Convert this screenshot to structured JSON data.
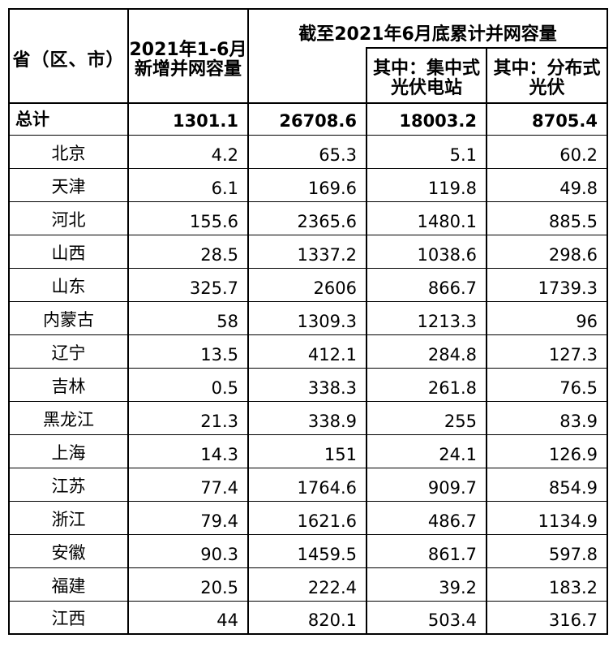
{
  "table": {
    "header": {
      "province": "省（区、市）",
      "new_capacity_line1": "2021年1-6月",
      "new_capacity_line2": "新增并网容量",
      "cumulative_title": "截至2021年6月底累计并网容量",
      "centralized_line1": "其中：集中式",
      "centralized_line2": "光伏电站",
      "distributed_line1": "其中：分布式",
      "distributed_line2": "光伏"
    },
    "total_row": {
      "label": "总计",
      "values": [
        "1301.1",
        "26708.6",
        "18003.2",
        "8705.4"
      ]
    },
    "rows": [
      {
        "province": "北京",
        "values": [
          "4.2",
          "65.3",
          "5.1",
          "60.2"
        ]
      },
      {
        "province": "天津",
        "values": [
          "6.1",
          "169.6",
          "119.8",
          "49.8"
        ]
      },
      {
        "province": "河北",
        "values": [
          "155.6",
          "2365.6",
          "1480.1",
          "885.5"
        ]
      },
      {
        "province": "山西",
        "values": [
          "28.5",
          "1337.2",
          "1038.6",
          "298.6"
        ]
      },
      {
        "province": "山东",
        "values": [
          "325.7",
          "2606",
          "866.7",
          "1739.3"
        ]
      },
      {
        "province": "内蒙古",
        "values": [
          "58",
          "1309.3",
          "1213.3",
          "96"
        ]
      },
      {
        "province": "辽宁",
        "values": [
          "13.5",
          "412.1",
          "284.8",
          "127.3"
        ]
      },
      {
        "province": "吉林",
        "values": [
          "0.5",
          "338.3",
          "261.8",
          "76.5"
        ]
      },
      {
        "province": "黑龙江",
        "values": [
          "21.3",
          "338.9",
          "255",
          "83.9"
        ]
      },
      {
        "province": "上海",
        "values": [
          "14.3",
          "151",
          "24.1",
          "126.9"
        ]
      },
      {
        "province": "江苏",
        "values": [
          "77.4",
          "1764.6",
          "909.7",
          "854.9"
        ]
      },
      {
        "province": "浙江",
        "values": [
          "79.4",
          "1621.6",
          "486.7",
          "1134.9"
        ]
      },
      {
        "province": "安徽",
        "values": [
          "90.3",
          "1459.5",
          "861.7",
          "597.8"
        ]
      },
      {
        "province": "福建",
        "values": [
          "20.5",
          "222.4",
          "39.2",
          "183.2"
        ]
      },
      {
        "province": "江西",
        "values": [
          "44",
          "820.1",
          "503.4",
          "316.7"
        ]
      }
    ],
    "colors": {
      "border": "#000000",
      "background": "#ffffff",
      "text": "#000000"
    }
  }
}
